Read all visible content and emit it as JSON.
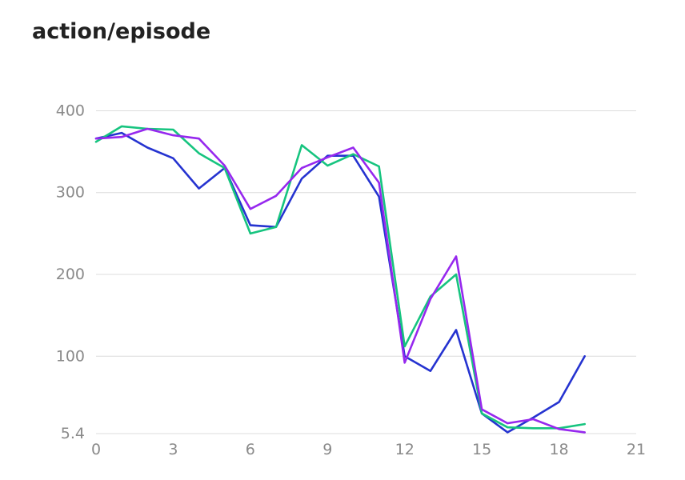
{
  "chart_data": {
    "type": "line",
    "title": "action/episode",
    "xlabel": "",
    "ylabel": "",
    "xlim": [
      0,
      21
    ],
    "ylim": [
      5.4,
      420
    ],
    "x_ticks": [
      "0",
      "3",
      "6",
      "9",
      "12",
      "15",
      "18",
      "21"
    ],
    "y_ticks": [
      "5.4",
      "100",
      "200",
      "300",
      "400"
    ],
    "grid": "horizontal",
    "legend": "none",
    "x": [
      0,
      1,
      2,
      3,
      4,
      5,
      6,
      7,
      8,
      9,
      10,
      11,
      12,
      13,
      14,
      15,
      16,
      17,
      18,
      19
    ],
    "series": [
      {
        "color": "#2533d0",
        "values": [
          366,
          373,
          355,
          342,
          305,
          330,
          260,
          258,
          317,
          345,
          345,
          295,
          100,
          82,
          132,
          30,
          7,
          25,
          44,
          100
        ]
      },
      {
        "color": "#16c47f",
        "values": [
          362,
          381,
          378,
          377,
          348,
          330,
          250,
          258,
          358,
          333,
          347,
          332,
          112,
          173,
          200,
          30,
          13,
          12,
          12,
          17
        ]
      },
      {
        "color": "#9628ee",
        "values": [
          366,
          368,
          378,
          370,
          366,
          333,
          280,
          296,
          330,
          343,
          355,
          312,
          92,
          170,
          222,
          35,
          18,
          23,
          11,
          7
        ]
      }
    ]
  }
}
